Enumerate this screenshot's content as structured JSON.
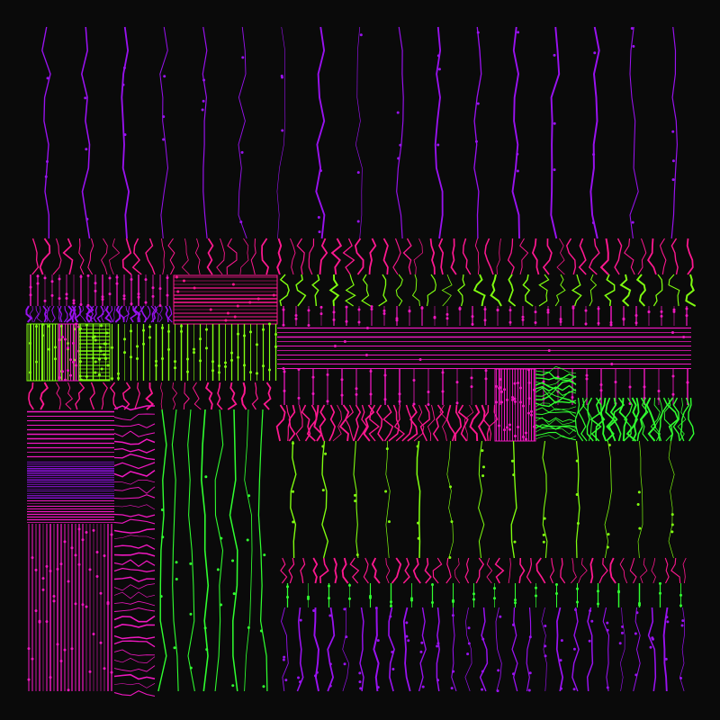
{
  "artwork": {
    "background": "#0a0a0a",
    "palette": {
      "purple": "#9a12f0",
      "magenta": "#f018c0",
      "pink": "#ff1890",
      "green": "#30ff30",
      "lime": "#80ff10"
    }
  }
}
